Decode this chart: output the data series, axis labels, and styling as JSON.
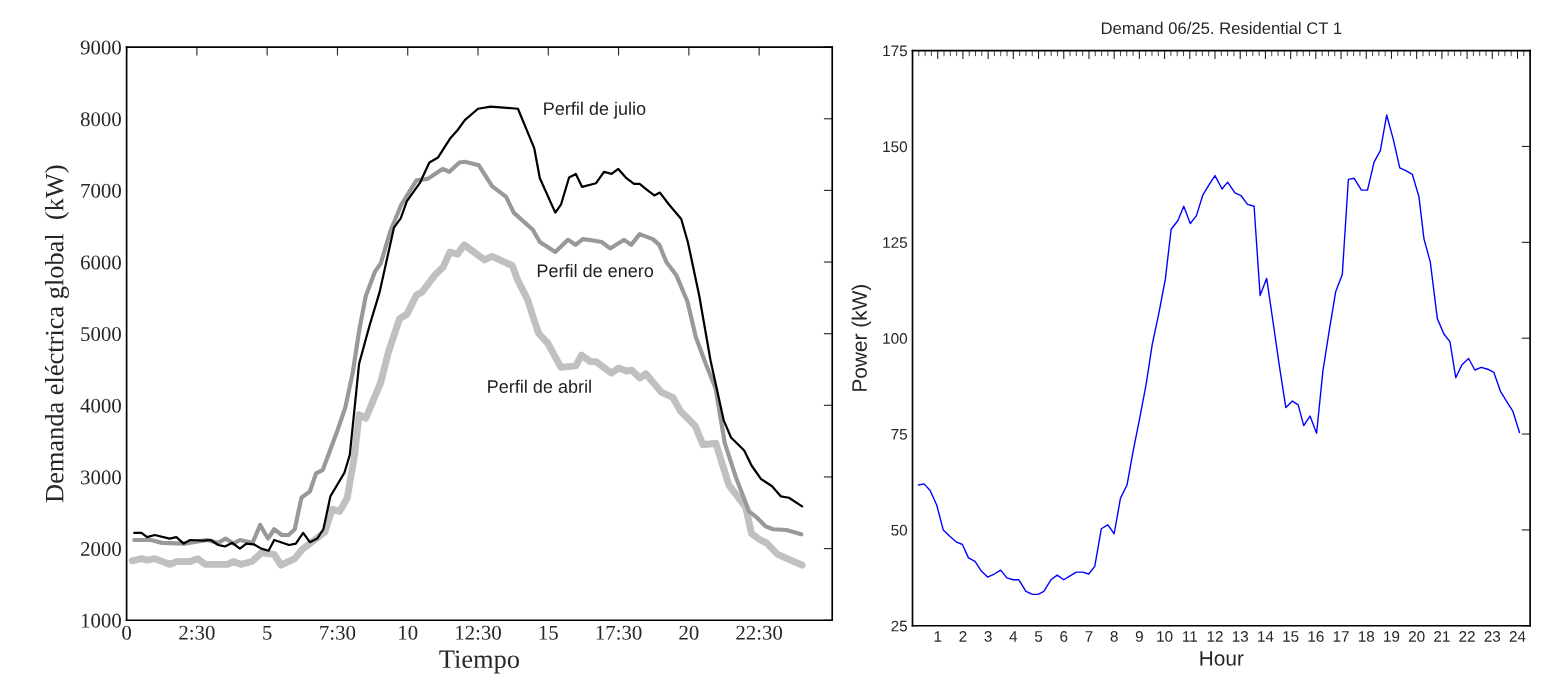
{
  "chart_data": [
    {
      "type": "line",
      "xlabel": "Tiempo",
      "ylabel": "Demanda eléctrica global  (kW)",
      "xlim": [
        0,
        25.1
      ],
      "ylim": [
        1000,
        9000
      ],
      "xticks": [
        0,
        {
          "value": 2.5,
          "label": "2:30"
        },
        5,
        {
          "value": 7.5,
          "label": "7:30"
        },
        10,
        {
          "value": 12.5,
          "label": "12:30"
        },
        15,
        {
          "value": 17.5,
          "label": "17:30"
        },
        20,
        {
          "value": 22.5,
          "label": "22:30"
        }
      ],
      "yticks": [
        1000,
        2000,
        3000,
        4000,
        5000,
        6000,
        7000,
        8000,
        9000
      ],
      "grid": false,
      "legend": false,
      "series": [
        {
          "name": "Perfil de abril",
          "color": "#c0c0c0",
          "x": [
            0.2,
            0.53,
            0.73,
            1,
            1.53,
            1.8,
            2.26,
            2.53,
            2.79,
            3.59,
            3.79,
            4.06,
            4.46,
            4.79,
            5.25,
            5.49,
            5.98,
            6.25,
            6.72,
            7.05,
            7.31,
            7.58,
            7.85,
            8.11,
            8.27,
            8.51,
            9.04,
            9.31,
            9.71,
            9.97,
            10.31,
            10.51,
            10.97,
            11.26,
            11.5,
            11.77,
            12.01,
            12.73,
            13,
            13.72,
            13.92,
            14.26,
            14.52,
            14.66,
            14.98,
            15.45,
            15.98,
            16.18,
            16.5,
            16.7,
            17.24,
            17.5,
            17.77,
            17.97,
            18.26,
            18.47,
            19.03,
            19.43,
            19.7,
            20.23,
            20.5,
            20.96,
            21.42,
            22.02,
            22.23,
            22.5,
            22.76,
            23.16,
            23.5,
            24.03
          ],
          "values": [
            1830,
            1860,
            1840,
            1860,
            1780,
            1820,
            1820,
            1860,
            1780,
            1780,
            1820,
            1780,
            1820,
            1940,
            1920,
            1770,
            1860,
            1990,
            2130,
            2230,
            2550,
            2520,
            2710,
            3310,
            3870,
            3820,
            4320,
            4740,
            5210,
            5270,
            5540,
            5580,
            5820,
            5930,
            6140,
            6110,
            6240,
            6030,
            6080,
            5950,
            5740,
            5480,
            5160,
            5000,
            4870,
            4530,
            4550,
            4700,
            4610,
            4610,
            4450,
            4520,
            4480,
            4490,
            4380,
            4440,
            4180,
            4110,
            3920,
            3710,
            3450,
            3470,
            2890,
            2580,
            2210,
            2130,
            2080,
            1920,
            1860,
            1770
          ]
        },
        {
          "name": "Perfil de enero",
          "color": "#999999",
          "x": [
            0.27,
            0.86,
            1.26,
            2.06,
            2.86,
            3.26,
            3.52,
            3.79,
            4.03,
            4.48,
            4.75,
            5.03,
            5.25,
            5.52,
            5.76,
            5.98,
            6.22,
            6.52,
            6.74,
            6.98,
            7.51,
            7.78,
            8.05,
            8.28,
            8.51,
            8.84,
            9.04,
            9.38,
            9.77,
            10.31,
            10.7,
            11.24,
            11.48,
            11.84,
            12.03,
            12.53,
            13,
            13.5,
            13.77,
            14.45,
            14.7,
            15.25,
            15.7,
            15.97,
            16.23,
            16.6,
            16.9,
            17.2,
            17.7,
            17.95,
            18.25,
            18.72,
            18.95,
            19.2,
            19.55,
            19.95,
            20.25,
            20.6,
            20.95,
            21.28,
            21.67,
            22.14,
            22.4,
            22.73,
            23,
            23.47,
            24
          ],
          "values": [
            2120,
            2120,
            2080,
            2070,
            2120,
            2080,
            2140,
            2070,
            2120,
            2080,
            2330,
            2140,
            2270,
            2190,
            2190,
            2270,
            2710,
            2800,
            3050,
            3100,
            3660,
            3970,
            4470,
            5060,
            5530,
            5870,
            5980,
            6430,
            6800,
            7140,
            7160,
            7300,
            7260,
            7390,
            7400,
            7350,
            7060,
            6910,
            6690,
            6450,
            6280,
            6140,
            6310,
            6240,
            6320,
            6300,
            6280,
            6190,
            6310,
            6240,
            6390,
            6320,
            6240,
            6000,
            5820,
            5450,
            4950,
            4580,
            4240,
            3470,
            3000,
            2520,
            2440,
            2310,
            2270,
            2260,
            2200
          ]
        },
        {
          "name": "Perfil de julio",
          "color": "#000000",
          "x": [
            0.27,
            0.53,
            0.73,
            1,
            1.53,
            1.77,
            2.03,
            2.26,
            2.73,
            2.99,
            3.26,
            3.5,
            3.76,
            4.03,
            4.26,
            4.52,
            4.79,
            5.05,
            5.25,
            5.78,
            6.02,
            6.28,
            6.52,
            6.78,
            7,
            7.25,
            7.75,
            7.94,
            8.27,
            8.64,
            9,
            9.51,
            9.75,
            9.97,
            10.44,
            10.77,
            11.08,
            11.5,
            11.77,
            12.03,
            12.5,
            12.95,
            13.92,
            14.5,
            14.7,
            15.25,
            15.45,
            15.74,
            15.98,
            16.2,
            16.7,
            16.98,
            17.25,
            17.49,
            17.78,
            18.05,
            18.25,
            18.5,
            18.77,
            18.97,
            19.3,
            19.73,
            19.97,
            20.37,
            20.77,
            21.24,
            21.5,
            21.97,
            22.23,
            22.57,
            22.96,
            23.27,
            23.56,
            24.03
          ],
          "values": [
            2220,
            2220,
            2160,
            2190,
            2140,
            2160,
            2070,
            2120,
            2110,
            2120,
            2050,
            2030,
            2080,
            2000,
            2070,
            2060,
            2000,
            1970,
            2120,
            2050,
            2070,
            2220,
            2090,
            2140,
            2270,
            2730,
            3060,
            3310,
            4580,
            5110,
            5580,
            6480,
            6610,
            6850,
            7110,
            7390,
            7460,
            7720,
            7840,
            7980,
            8140,
            8170,
            8140,
            7590,
            7170,
            6690,
            6800,
            7180,
            7230,
            7050,
            7100,
            7260,
            7230,
            7300,
            7170,
            7090,
            7090,
            7010,
            6930,
            6970,
            6800,
            6600,
            6270,
            5530,
            4630,
            3790,
            3550,
            3370,
            3160,
            2970,
            2870,
            2730,
            2710,
            2590
          ]
        }
      ]
    },
    {
      "type": "line",
      "title": "Demand 06/25. Residential CT 1",
      "xlabel": "Hour",
      "ylabel": "Power (kW)",
      "xlim": [
        0,
        24.5
      ],
      "ylim": [
        25,
        175
      ],
      "xticks": [
        1,
        2,
        3,
        4,
        5,
        6,
        7,
        8,
        9,
        10,
        11,
        12,
        13,
        14,
        15,
        16,
        17,
        18,
        19,
        20,
        21,
        22,
        23,
        24
      ],
      "yticks": [
        25,
        50,
        75,
        100,
        125,
        150,
        175
      ],
      "grid": false,
      "legend": false,
      "series": [
        {
          "color": "#0000ff",
          "x": [
            0.24,
            0.46,
            0.7,
            0.96,
            1.22,
            1.49,
            1.75,
            1.98,
            2.22,
            2.48,
            2.74,
            2.98,
            3.24,
            3.5,
            3.74,
            4.0,
            4.22,
            4.5,
            4.76,
            4.98,
            5.21,
            5.49,
            5.74,
            6.0,
            6.25,
            6.5,
            6.75,
            6.99,
            7.23,
            7.49,
            7.75,
            8.0,
            8.25,
            8.51,
            8.75,
            9.01,
            9.27,
            9.51,
            9.77,
            10.03,
            10.26,
            10.53,
            10.76,
            11.02,
            11.26,
            11.52,
            11.78,
            12.0,
            12.28,
            12.5,
            12.79,
            13.03,
            13.29,
            13.55,
            13.79,
            14.05,
            14.31,
            14.55,
            14.81,
            15.07,
            15.3,
            15.52,
            15.77,
            16.03,
            16.28,
            16.53,
            16.79,
            17.05,
            17.29,
            17.52,
            17.81,
            18.05,
            18.31,
            18.56,
            18.81,
            19.07,
            19.33,
            19.57,
            19.83,
            20.09,
            20.29,
            20.54,
            20.82,
            21.08,
            21.32,
            21.55,
            21.8,
            22.06,
            22.31,
            22.56,
            22.82,
            23.06,
            23.32,
            23.58,
            23.82,
            24.08
          ],
          "values": [
            61.7,
            62.0,
            60.3,
            56.5,
            50.0,
            48.3,
            46.8,
            46.2,
            42.7,
            41.8,
            39.2,
            37.7,
            38.5,
            39.5,
            37.5,
            37.0,
            37.0,
            34.0,
            33.2,
            33.2,
            34.0,
            37.0,
            38.2,
            37.0,
            38.0,
            39.0,
            39.0,
            38.5,
            40.5,
            50.3,
            51.3,
            49.0,
            58.3,
            61.7,
            70.5,
            79.0,
            88.0,
            98.4,
            106.4,
            115.4,
            128.4,
            130.7,
            134.4,
            129.9,
            131.9,
            137.4,
            140.2,
            142.4,
            138.9,
            140.7,
            137.9,
            137.2,
            134.9,
            134.4,
            111.1,
            115.6,
            103.9,
            92.9,
            81.9,
            83.6,
            82.6,
            77.2,
            79.7,
            75.2,
            91.4,
            101.9,
            112.2,
            116.6,
            141.4,
            141.7,
            138.6,
            138.6,
            145.9,
            148.9,
            158.2,
            151.9,
            144.4,
            143.7,
            142.7,
            136.9,
            125.9,
            119.9,
            105.1,
            101.1,
            99.1,
            89.7,
            93.1,
            94.7,
            91.7,
            92.4,
            91.9,
            91.1,
            86.2,
            83.4,
            80.9,
            75.4
          ]
        }
      ]
    }
  ]
}
